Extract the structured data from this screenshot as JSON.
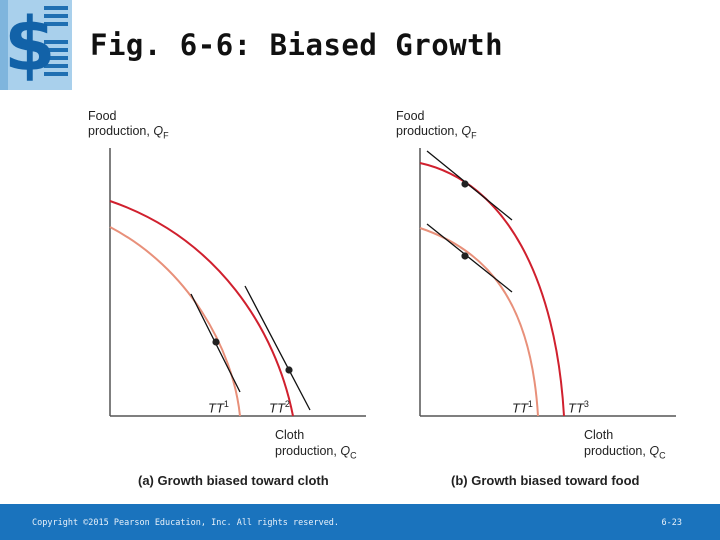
{
  "slide": {
    "title": "Fig. 6-6: Biased Growth",
    "copyright": "Copyright ©2015 Pearson Education, Inc. All rights reserved.",
    "page": "6-23",
    "logo_icon": "dollar-sign-icon"
  },
  "panels": [
    {
      "caption": "(a) Growth biased toward cloth",
      "ylabel_line1": "Food",
      "ylabel_line2": "production, ",
      "ylabel_sym": "Q",
      "ylabel_sub": "F",
      "xlabel_line1": "Cloth",
      "xlabel_line2": "production, ",
      "xlabel_sym": "Q",
      "xlabel_sub": "C",
      "inner_curve": "TT",
      "inner_sup": "1",
      "outer_curve": "TT",
      "outer_sup": "2"
    },
    {
      "caption": "(b) Growth biased toward food",
      "ylabel_line1": "Food",
      "ylabel_line2": "production, ",
      "ylabel_sym": "Q",
      "ylabel_sub": "F",
      "xlabel_line1": "Cloth",
      "xlabel_line2": "production, ",
      "xlabel_sym": "Q",
      "xlabel_sub": "C",
      "inner_curve": "TT",
      "inner_sup": "1",
      "outer_curve": "TT",
      "outer_sup": "3"
    }
  ],
  "colors": {
    "inner_curve": "#e8907a",
    "outer_curve": "#d0202e",
    "axes": "#555555",
    "footer": "#1a73bd"
  }
}
